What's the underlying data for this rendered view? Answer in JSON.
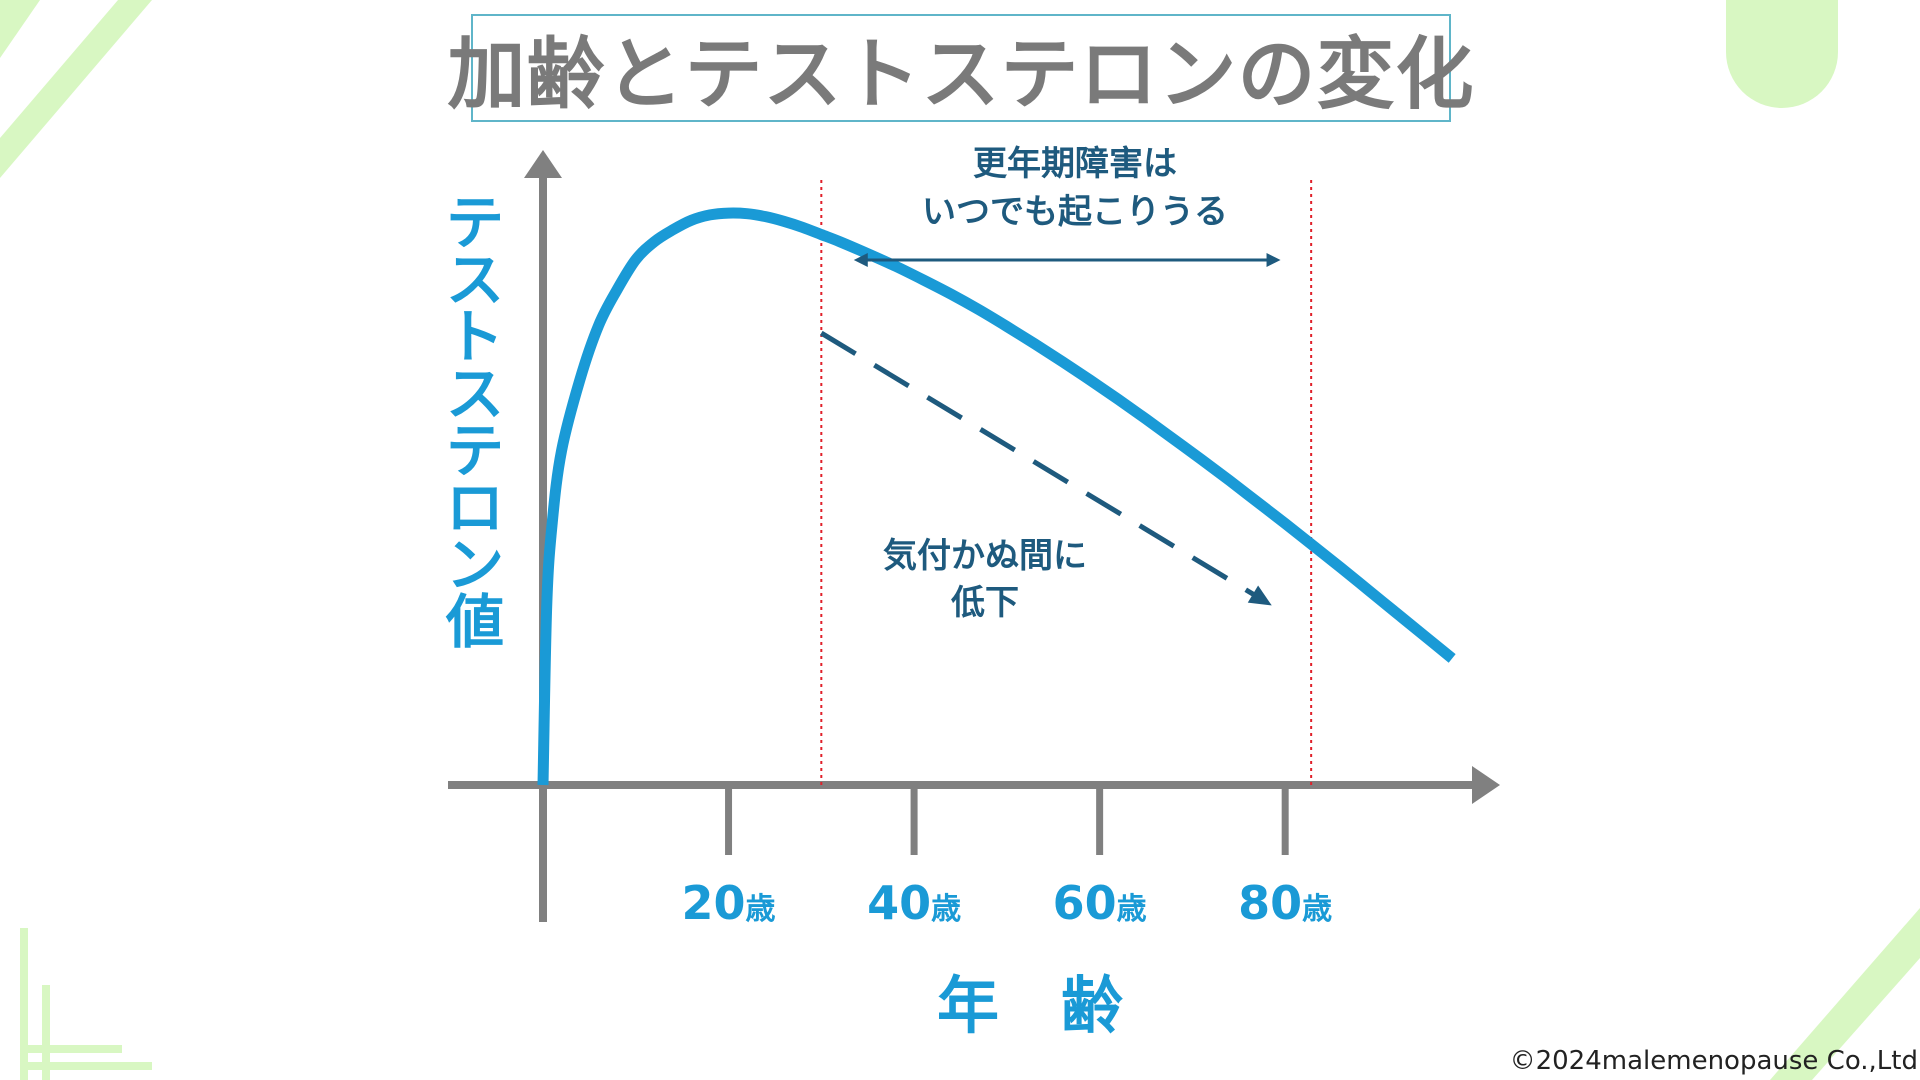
{
  "title": "加齢とテストステロンの変化",
  "copyright": "©2024malemenopause Co.,Ltd",
  "colors": {
    "curve": "#1a9ad6",
    "axis": "#808080",
    "annotation": "#1e5a7e",
    "guide_line": "#e0202a",
    "decor_green": "#d8f7c2",
    "title_border": "#5fb5c9"
  },
  "chart_data": {
    "type": "line",
    "title": "加齢とテストステロンの変化",
    "xlabel": "年　齢",
    "ylabel": "テストステロン値",
    "x_ticks": [
      {
        "value": 20,
        "num": "20",
        "unit": "歳"
      },
      {
        "value": 40,
        "num": "40",
        "unit": "歳"
      },
      {
        "value": 60,
        "num": "60",
        "unit": "歳"
      },
      {
        "value": 80,
        "num": "80",
        "unit": "歳"
      }
    ],
    "xlim": [
      0,
      101
    ],
    "ylim": [
      0,
      100
    ],
    "y_ticks_shown": false,
    "grid": false,
    "series": [
      {
        "style": "solid",
        "x": [
          0,
          0.4,
          1,
          2,
          4,
          6,
          8,
          10,
          12,
          14,
          16,
          18,
          20,
          22,
          24,
          26,
          28,
          30,
          32,
          35,
          38,
          41,
          44,
          47,
          50,
          53,
          56,
          59,
          62,
          65,
          68,
          71,
          74,
          77,
          80,
          83,
          86,
          89,
          92,
          95,
          98
        ],
        "y": [
          0,
          30,
          44,
          56,
          68,
          77,
          83,
          88,
          91,
          93,
          94.6,
          95.5,
          95.8,
          95.7,
          95.2,
          94.4,
          93.4,
          92.2,
          91,
          89,
          86.9,
          84.6,
          82.2,
          79.6,
          76.8,
          73.9,
          70.9,
          67.8,
          64.6,
          61.3,
          57.9,
          54.5,
          51,
          47.4,
          43.8,
          40.1,
          36.4,
          32.6,
          28.8,
          25,
          21.2
        ]
      },
      {
        "style": "dashed",
        "x": [
          30,
          78
        ],
        "y": [
          75.7,
          30.6
        ]
      }
    ],
    "guide_lines": [
      {
        "x": 30
      },
      {
        "x": 82.8
      }
    ],
    "range_arrow": {
      "x_start": 33.5,
      "x_end": 79.5
    },
    "annotations": [
      {
        "lines": [
          "更年期障害は",
          "いつでも起こりうる"
        ]
      },
      {
        "lines": [
          "気付かぬ間に",
          "低下"
        ]
      }
    ]
  }
}
